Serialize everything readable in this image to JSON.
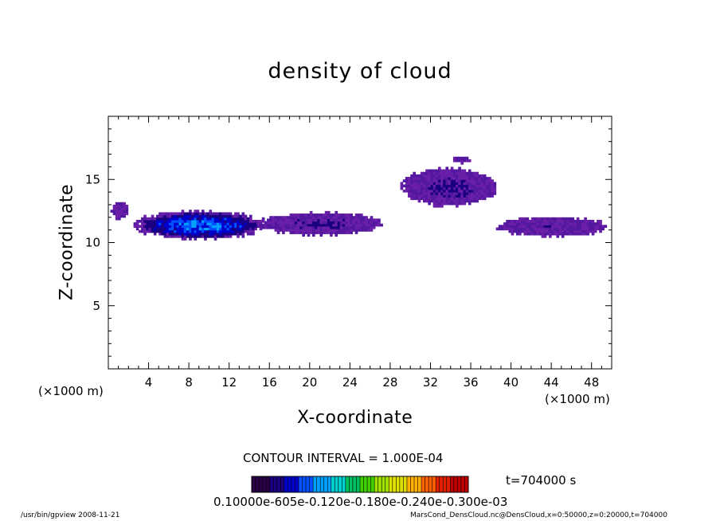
{
  "chart_data": {
    "type": "heatmap",
    "title": "density of cloud",
    "xlabel": "X-coordinate",
    "ylabel": "Z-coordinate",
    "x_unit_left": "(×1000 m)",
    "x_unit_right": "(×1000 m)",
    "xlim": [
      0,
      50
    ],
    "ylim": [
      0,
      20
    ],
    "x_ticks": [
      4,
      8,
      12,
      16,
      20,
      24,
      28,
      32,
      36,
      40,
      44,
      48
    ],
    "x_tick_labels": [
      "4",
      "8",
      "12",
      "16",
      "20",
      "24",
      "28",
      "32",
      "36",
      "40",
      "44",
      "48"
    ],
    "y_ticks": [
      5,
      10,
      15
    ],
    "y_tick_labels": [
      "5",
      "10",
      "15"
    ],
    "contour_interval": "CONTOUR INTERVAL = 1.000E-04",
    "time_label": "t=704000 s",
    "colorbar_labels": "0.10000e-605e-0.120e-0.180e-0.240e-0.300e-03",
    "colorbar_colors": [
      "#2a0044",
      "#1a0080",
      "#0000cc",
      "#0050ff",
      "#00a0ff",
      "#00d0d0",
      "#00c060",
      "#40d000",
      "#a0e000",
      "#e0e000",
      "#ffb000",
      "#ff6000",
      "#e02000",
      "#c00000"
    ],
    "cloud_layers": [
      {
        "x": [
          0.2,
          1.8
        ],
        "z": [
          11.8,
          13.2
        ],
        "peak": 0.6
      },
      {
        "x": [
          2.5,
          15.5
        ],
        "z": [
          10.2,
          12.4
        ],
        "peak": 4.0
      },
      {
        "x": [
          15.0,
          27.0
        ],
        "z": [
          10.5,
          12.3
        ],
        "peak": 1.2
      },
      {
        "x": [
          29.0,
          38.5
        ],
        "z": [
          12.8,
          15.8
        ],
        "peak": 1.3
      },
      {
        "x": [
          34.0,
          36.0
        ],
        "z": [
          16.2,
          16.7
        ],
        "peak": 0.5
      },
      {
        "x": [
          38.5,
          49.5
        ],
        "z": [
          10.4,
          11.9
        ],
        "peak": 1.0
      }
    ]
  },
  "footer": {
    "left": "/usr/bin/gpview   2008-11-21",
    "right": "MarsCond_DensCloud.nc@DensCloud,x=0:50000,z=0:20000,t=704000"
  }
}
